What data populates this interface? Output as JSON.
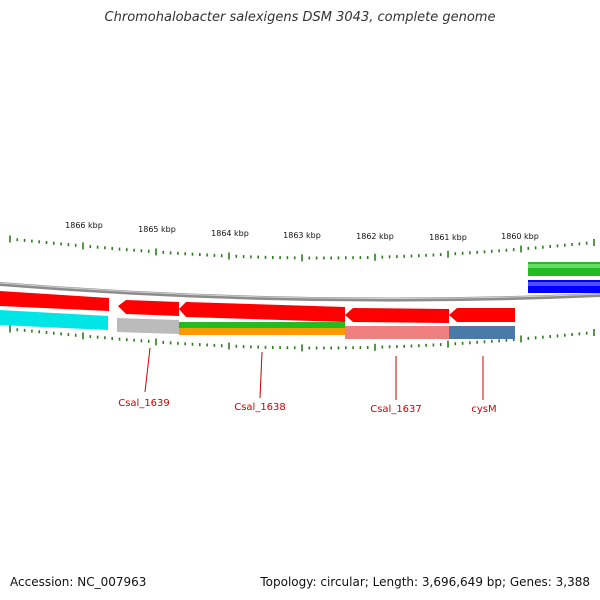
{
  "title": "Chromohalobacter salexigens DSM 3043, complete genome",
  "footer": {
    "accession": "Accession: NC_007963",
    "summary": "Topology: circular; Length: 3,696,649 bp; Genes: 3,388"
  },
  "scale_labels": [
    "1866 kbp",
    "1865 kbp",
    "1864 kbp",
    "1863 kbp",
    "1862 kbp",
    "1861 kbp",
    "1860 kbp"
  ],
  "gene_labels": [
    "Csal_1639",
    "Csal_1638",
    "Csal_1637",
    "cysM"
  ],
  "colors": {
    "cds": "#ff0000",
    "backbone": "#8c8c8c",
    "tick": "#2e7d1e",
    "label": "#cc0000",
    "blue": "#0000ff",
    "green": "#22bb22",
    "cyan": "#00e5e5",
    "orange": "#ff9900",
    "pink": "#f08080",
    "steel": "#4a7aa8",
    "grey": "#bbbbbb"
  }
}
